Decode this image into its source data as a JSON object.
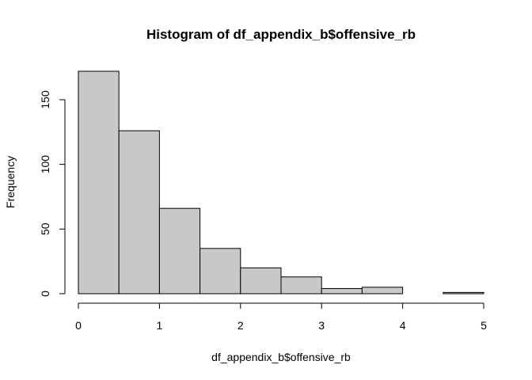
{
  "chart_data": {
    "type": "bar",
    "title": "Histogram of df_appendix_b$offensive_rb",
    "xlabel": "df_appendix_b$offensive_rb",
    "ylabel": "Frequency",
    "bins": [
      {
        "start": 0.0,
        "end": 0.5,
        "count": 172
      },
      {
        "start": 0.5,
        "end": 1.0,
        "count": 126
      },
      {
        "start": 1.0,
        "end": 1.5,
        "count": 66
      },
      {
        "start": 1.5,
        "end": 2.0,
        "count": 35
      },
      {
        "start": 2.0,
        "end": 2.5,
        "count": 20
      },
      {
        "start": 2.5,
        "end": 3.0,
        "count": 13
      },
      {
        "start": 3.0,
        "end": 3.5,
        "count": 4
      },
      {
        "start": 3.5,
        "end": 4.0,
        "count": 5
      },
      {
        "start": 4.0,
        "end": 4.5,
        "count": 0
      },
      {
        "start": 4.5,
        "end": 5.0,
        "count": 1
      }
    ],
    "xlim": [
      0,
      5
    ],
    "ylim": [
      0,
      172
    ],
    "x_ticks": [
      "0",
      "1",
      "2",
      "3",
      "4",
      "5"
    ],
    "y_ticks": [
      "0",
      "50",
      "100",
      "150"
    ],
    "grid": false,
    "bar_color": "#c8c8c8",
    "edge_color": "#000000"
  }
}
